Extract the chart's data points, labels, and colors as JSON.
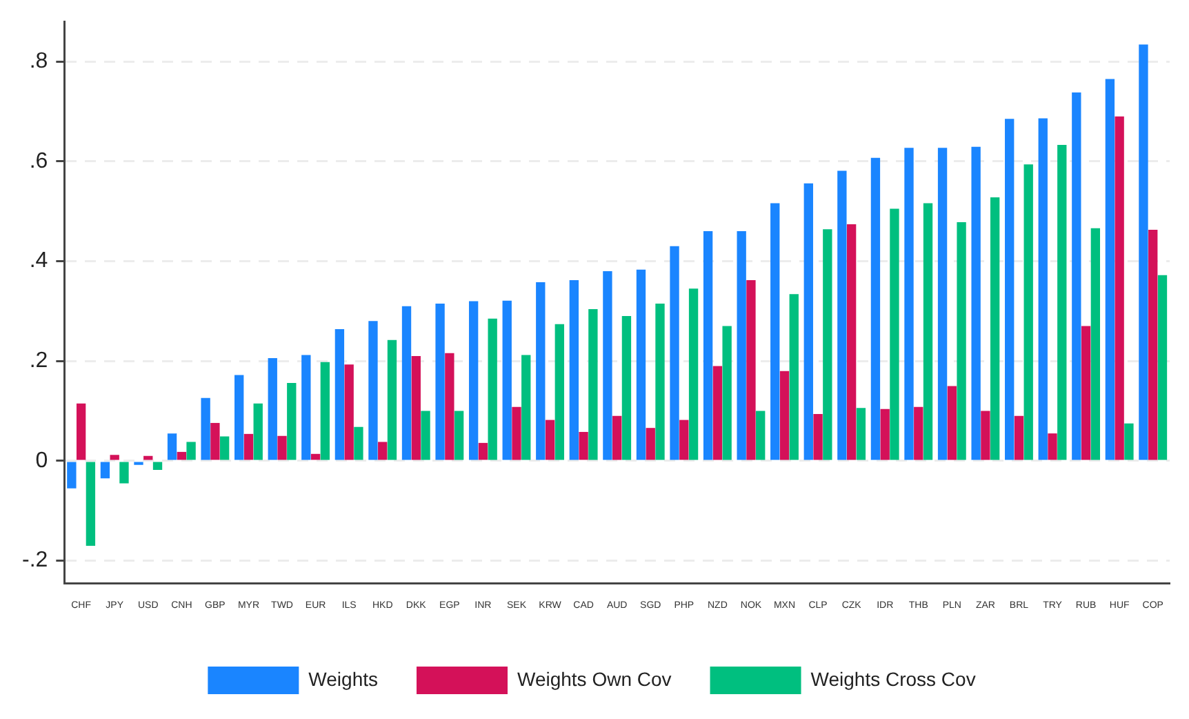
{
  "chart_data": {
    "type": "bar",
    "categories": [
      "CHF",
      "JPY",
      "USD",
      "CNH",
      "GBP",
      "MYR",
      "TWD",
      "EUR",
      "ILS",
      "HKD",
      "DKK",
      "EGP",
      "INR",
      "SEK",
      "KRW",
      "CAD",
      "AUD",
      "SGD",
      "PHP",
      "NZD",
      "NOK",
      "MXN",
      "CLP",
      "CZK",
      "IDR",
      "THB",
      "PLN",
      "ZAR",
      "BRL",
      "TRY",
      "RUB",
      "HUF",
      "COP"
    ],
    "series": [
      {
        "name": "Weights",
        "color": "#1a85ff",
        "values": [
          -0.055,
          -0.035,
          -0.008,
          0.055,
          0.126,
          0.172,
          0.206,
          0.212,
          0.264,
          0.28,
          0.31,
          0.315,
          0.32,
          0.321,
          0.358,
          0.362,
          0.38,
          0.383,
          0.43,
          0.46,
          0.46,
          0.516,
          0.556,
          0.581,
          0.607,
          0.627,
          0.627,
          0.629,
          0.685,
          0.686,
          0.738,
          0.765,
          0.834
        ]
      },
      {
        "name": "Weights Own Cov",
        "color": "#d41159",
        "values": [
          0.115,
          0.012,
          0.01,
          0.018,
          0.076,
          0.054,
          0.05,
          0.014,
          0.193,
          0.038,
          0.21,
          0.216,
          0.036,
          0.108,
          0.082,
          0.058,
          0.09,
          0.066,
          0.082,
          0.19,
          0.362,
          0.18,
          0.094,
          0.474,
          0.104,
          0.108,
          0.15,
          0.1,
          0.09,
          0.055,
          0.27,
          0.69,
          0.463
        ]
      },
      {
        "name": "Weights Cross Cov",
        "color": "#00bf7f",
        "values": [
          -0.17,
          -0.045,
          -0.018,
          0.038,
          0.049,
          0.115,
          0.156,
          0.198,
          0.068,
          0.242,
          0.1,
          0.1,
          0.285,
          0.212,
          0.274,
          0.304,
          0.29,
          0.315,
          0.345,
          0.27,
          0.1,
          0.334,
          0.464,
          0.106,
          0.505,
          0.516,
          0.478,
          0.528,
          0.594,
          0.633,
          0.466,
          0.075,
          0.372
        ]
      }
    ],
    "ylim": [
      -0.245,
      0.88
    ],
    "yticks": [
      {
        "value": -0.2,
        "label": "-.2"
      },
      0,
      {
        "value": 0.2,
        "label": ".2"
      },
      {
        "value": 0.4,
        "label": ".4"
      },
      {
        "value": 0.6,
        "label": ".6"
      },
      {
        "value": 0.8,
        "label": ".8"
      }
    ],
    "grid": "y",
    "legend": "bottom"
  }
}
